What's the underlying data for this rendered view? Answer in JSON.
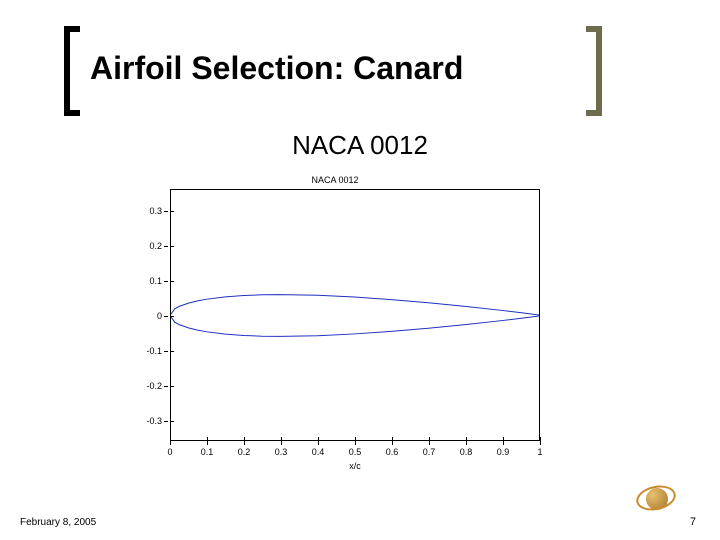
{
  "slide": {
    "title": "Airfoil Selection: Canard",
    "subtitle": "NACA 0012"
  },
  "chart": {
    "type": "line",
    "title": "NACA 0012",
    "xlabel": "x/c",
    "xlim": [
      0,
      1
    ],
    "ylim": [
      -0.36,
      0.36
    ],
    "xticks": [
      0,
      0.1,
      0.2,
      0.3,
      0.4,
      0.5,
      0.6,
      0.7,
      0.8,
      0.9,
      1
    ],
    "xtick_labels": [
      "0",
      "0.1",
      "0.2",
      "0.3",
      "0.4",
      "0.5",
      "0.6",
      "0.7",
      "0.8",
      "0.9",
      "1"
    ],
    "yticks": [
      0.3,
      0.2,
      0.1,
      0,
      -0.1,
      -0.2,
      -0.3
    ],
    "ytick_labels": [
      "0.3",
      "0.2",
      "0.1",
      "0",
      "-0.1",
      "-0.2",
      "-0.3"
    ],
    "line_color": "#2030c0",
    "line_width": 1,
    "background_color": "#ffffff",
    "border_color": "#000000",
    "upper": [
      [
        0.0,
        0.0
      ],
      [
        0.0125,
        0.0189
      ],
      [
        0.025,
        0.0262
      ],
      [
        0.05,
        0.0355
      ],
      [
        0.075,
        0.042
      ],
      [
        0.1,
        0.0468
      ],
      [
        0.15,
        0.0534
      ],
      [
        0.2,
        0.0574
      ],
      [
        0.25,
        0.0594
      ],
      [
        0.3,
        0.06
      ],
      [
        0.4,
        0.058
      ],
      [
        0.5,
        0.0529
      ],
      [
        0.6,
        0.0456
      ],
      [
        0.7,
        0.0366
      ],
      [
        0.8,
        0.0262
      ],
      [
        0.9,
        0.0145
      ],
      [
        0.95,
        0.0081
      ],
      [
        1.0,
        0.0013
      ]
    ],
    "lower": [
      [
        0.0,
        0.0
      ],
      [
        0.0125,
        -0.0189
      ],
      [
        0.025,
        -0.0262
      ],
      [
        0.05,
        -0.0355
      ],
      [
        0.075,
        -0.042
      ],
      [
        0.1,
        -0.0468
      ],
      [
        0.15,
        -0.0534
      ],
      [
        0.2,
        -0.0574
      ],
      [
        0.25,
        -0.0594
      ],
      [
        0.3,
        -0.06
      ],
      [
        0.4,
        -0.058
      ],
      [
        0.5,
        -0.0529
      ],
      [
        0.6,
        -0.0456
      ],
      [
        0.7,
        -0.0366
      ],
      [
        0.8,
        -0.0262
      ],
      [
        0.9,
        -0.0145
      ],
      [
        0.95,
        -0.0081
      ],
      [
        1.0,
        -0.0013
      ]
    ]
  },
  "footer": {
    "date": "February 8, 2005",
    "page": "7"
  }
}
